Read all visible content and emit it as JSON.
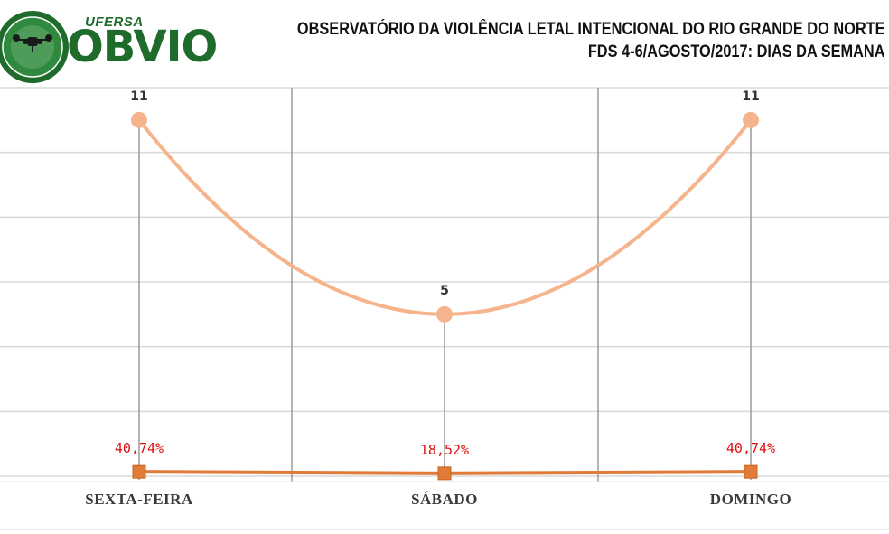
{
  "header": {
    "logo_university": "UFERSA",
    "logo_word": "OBVIO",
    "logo_seal_text": "OBVIO · DA VIOLÊNCIA LETAL INTENCIONAL",
    "title_line1": "OBSERVATÓRIO DA VIOLÊNCIA LETAL INTENCIONAL DO RIO GRANDE DO NORTE",
    "title_line2": "FDS 4-6/AGOSTO/2017:  DIAS DA SEMANA"
  },
  "colors": {
    "count_series": "#f5b48c",
    "pct_series": "#e07b39",
    "pct_label": "#e01010",
    "grid": "#d9d9d9",
    "logo_green": "#1f6b2c"
  },
  "chart_data": {
    "type": "line",
    "categories": [
      "SEXTA-FEIRA",
      "SÁBADO",
      "DOMINGO"
    ],
    "series": [
      {
        "values": [
          11,
          5,
          11
        ],
        "labels": [
          "11",
          "5",
          "11"
        ],
        "marker": "circle",
        "smooth": true
      },
      {
        "values": [
          40.74,
          18.52,
          40.74
        ],
        "labels": [
          "40,74%",
          "18,52%",
          "40,74%"
        ],
        "marker": "square"
      }
    ],
    "ylim": [
      0,
      12
    ],
    "grid": true,
    "legend": "none"
  }
}
